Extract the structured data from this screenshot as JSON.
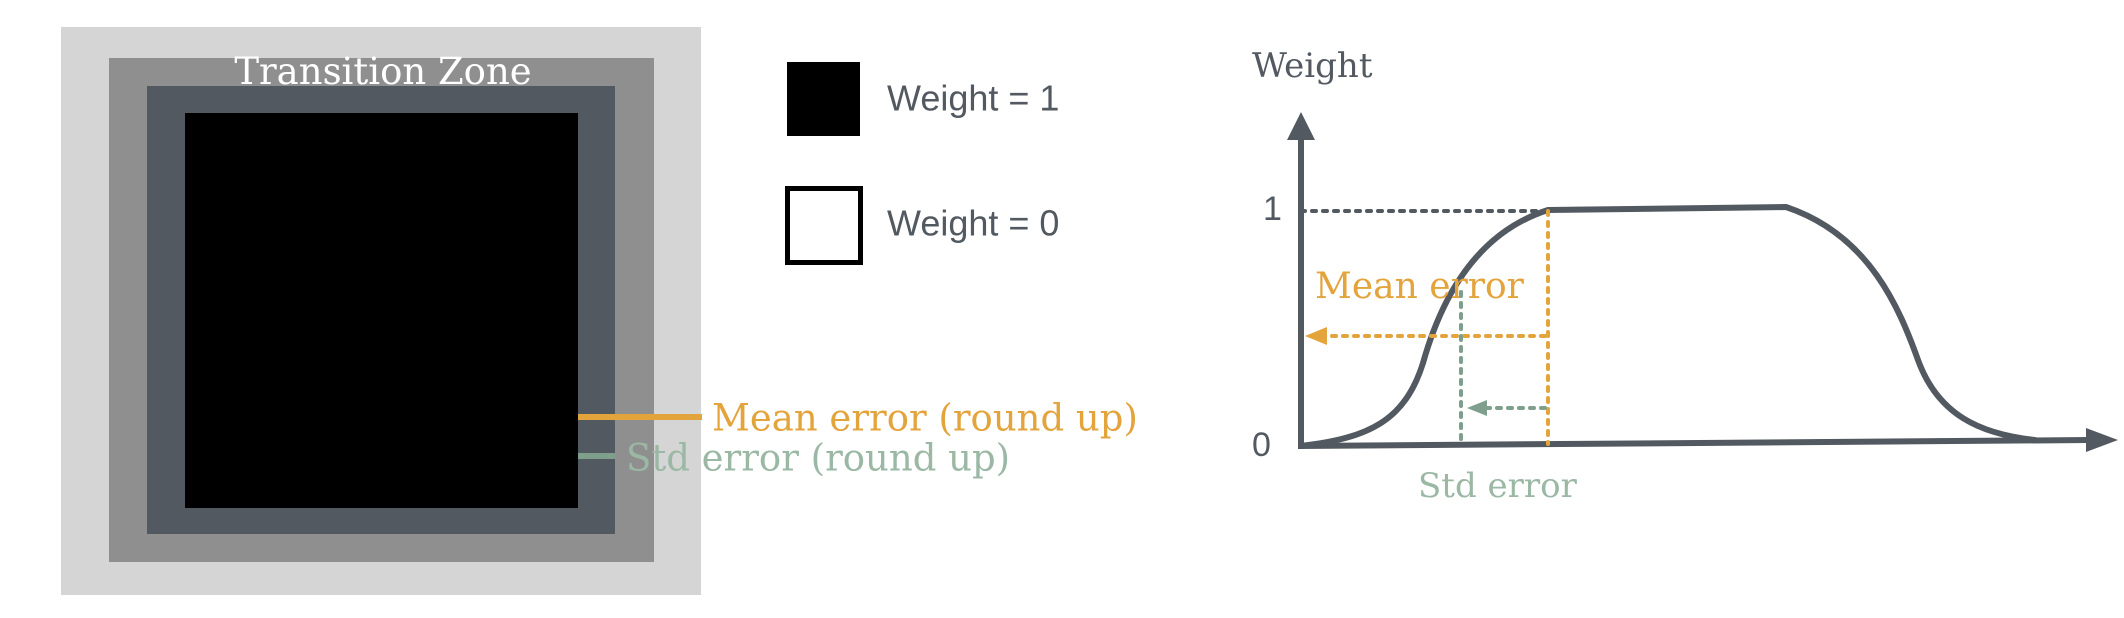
{
  "left_panel": {
    "zone_label": "Transition Zone",
    "mean_label": "Mean error (round up)",
    "std_label": "Std error (round up)"
  },
  "legend": {
    "filled_label": "Weight = 1",
    "empty_label": "Weight = 0"
  },
  "graph": {
    "y_axis_label": "Weight",
    "tick_one": "1",
    "tick_zero": "0",
    "mean_label": "Mean error",
    "std_label": "Std error"
  },
  "colors": {
    "outer_zone": "#d5d5d5",
    "middle_zone": "#8f8f8f",
    "inner_zone": "#525960",
    "core": "#000000",
    "mean": "#e3a43c",
    "std": "#7e9f8b",
    "std_text": "#9bb8a5",
    "axis": "#525960",
    "text": "#525960"
  }
}
